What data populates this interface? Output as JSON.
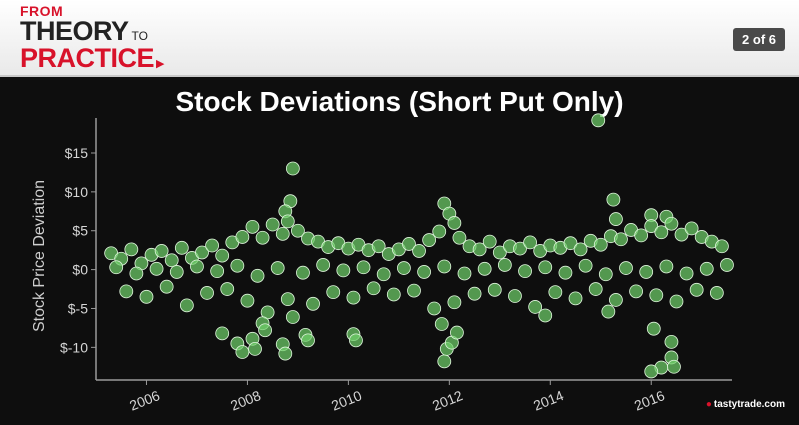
{
  "header": {
    "brand_from": "FROM",
    "brand_theory": "THEORY",
    "brand_to": "TO",
    "brand_practice": "PRACTICE",
    "slide_counter": "2 of 6"
  },
  "logo_text": "tastytrade.com",
  "chart_data": {
    "type": "scatter",
    "title": "Stock Deviations (Short Put Only)",
    "xlabel": "",
    "ylabel": "Stock Price Deviation",
    "x_ticks": [
      "2006",
      "2008",
      "2010",
      "2012",
      "2014",
      "2016"
    ],
    "y_ticks": [
      "$15",
      "$10",
      "$5",
      "$0",
      "$-5",
      "$-10"
    ],
    "y_tick_values": [
      15,
      10,
      5,
      0,
      -5,
      -10
    ],
    "xlim": [
      2005.0,
      2017.6
    ],
    "ylim": [
      -14.2,
      19.5
    ],
    "marker_color": "#6fcf6a",
    "grid": false,
    "points": [
      [
        2008.9,
        13.0
      ],
      [
        2008.85,
        8.8
      ],
      [
        2008.75,
        7.5
      ],
      [
        2008.8,
        6.2
      ],
      [
        2011.9,
        8.5
      ],
      [
        2012.0,
        7.2
      ],
      [
        2012.1,
        6.0
      ],
      [
        2014.95,
        19.2
      ],
      [
        2015.25,
        9.0
      ],
      [
        2015.3,
        6.5
      ],
      [
        2016.0,
        7.0
      ],
      [
        2016.3,
        6.8
      ],
      [
        2005.3,
        2.1
      ],
      [
        2005.5,
        1.4
      ],
      [
        2005.7,
        2.6
      ],
      [
        2005.9,
        0.8
      ],
      [
        2006.1,
        1.9
      ],
      [
        2006.3,
        2.4
      ],
      [
        2006.5,
        1.2
      ],
      [
        2006.7,
        2.8
      ],
      [
        2006.9,
        1.5
      ],
      [
        2007.1,
        2.2
      ],
      [
        2007.3,
        3.1
      ],
      [
        2007.5,
        1.8
      ],
      [
        2007.7,
        3.5
      ],
      [
        2007.9,
        4.2
      ],
      [
        2008.1,
        5.5
      ],
      [
        2008.3,
        4.1
      ],
      [
        2008.5,
        5.8
      ],
      [
        2008.7,
        4.6
      ],
      [
        2009.0,
        5.0
      ],
      [
        2009.2,
        4.0
      ],
      [
        2009.4,
        3.6
      ],
      [
        2009.6,
        2.9
      ],
      [
        2009.8,
        3.4
      ],
      [
        2010.0,
        2.7
      ],
      [
        2010.2,
        3.2
      ],
      [
        2010.4,
        2.5
      ],
      [
        2010.6,
        3.0
      ],
      [
        2010.8,
        2.0
      ],
      [
        2011.0,
        2.6
      ],
      [
        2011.2,
        3.3
      ],
      [
        2011.4,
        2.4
      ],
      [
        2011.6,
        3.8
      ],
      [
        2011.8,
        4.9
      ],
      [
        2012.2,
        4.1
      ],
      [
        2012.4,
        3.0
      ],
      [
        2012.6,
        2.6
      ],
      [
        2012.8,
        3.6
      ],
      [
        2013.0,
        2.2
      ],
      [
        2013.2,
        3.0
      ],
      [
        2013.4,
        2.7
      ],
      [
        2013.6,
        3.5
      ],
      [
        2013.8,
        2.4
      ],
      [
        2014.0,
        3.1
      ],
      [
        2014.2,
        2.8
      ],
      [
        2014.4,
        3.4
      ],
      [
        2014.6,
        2.6
      ],
      [
        2014.8,
        3.7
      ],
      [
        2015.0,
        3.2
      ],
      [
        2015.2,
        4.3
      ],
      [
        2015.4,
        3.9
      ],
      [
        2015.6,
        5.1
      ],
      [
        2015.8,
        4.4
      ],
      [
        2016.0,
        5.6
      ],
      [
        2016.2,
        4.8
      ],
      [
        2016.4,
        5.9
      ],
      [
        2016.6,
        4.5
      ],
      [
        2016.8,
        5.3
      ],
      [
        2017.0,
        4.2
      ],
      [
        2017.2,
        3.6
      ],
      [
        2017.4,
        3.0
      ],
      [
        2005.4,
        0.3
      ],
      [
        2005.8,
        -0.5
      ],
      [
        2006.2,
        0.1
      ],
      [
        2006.6,
        -0.3
      ],
      [
        2007.0,
        0.4
      ],
      [
        2007.4,
        -0.2
      ],
      [
        2007.8,
        0.5
      ],
      [
        2008.2,
        -0.8
      ],
      [
        2008.6,
        0.2
      ],
      [
        2009.1,
        -0.4
      ],
      [
        2009.5,
        0.6
      ],
      [
        2009.9,
        -0.1
      ],
      [
        2010.3,
        0.3
      ],
      [
        2010.7,
        -0.6
      ],
      [
        2011.1,
        0.2
      ],
      [
        2011.5,
        -0.3
      ],
      [
        2011.9,
        0.4
      ],
      [
        2012.3,
        -0.5
      ],
      [
        2012.7,
        0.1
      ],
      [
        2013.1,
        0.6
      ],
      [
        2013.5,
        -0.2
      ],
      [
        2013.9,
        0.3
      ],
      [
        2014.3,
        -0.4
      ],
      [
        2014.7,
        0.5
      ],
      [
        2015.1,
        -0.6
      ],
      [
        2015.5,
        0.2
      ],
      [
        2015.9,
        -0.3
      ],
      [
        2016.3,
        0.4
      ],
      [
        2016.7,
        -0.5
      ],
      [
        2017.1,
        0.1
      ],
      [
        2017.5,
        0.6
      ],
      [
        2005.6,
        -2.8
      ],
      [
        2006.0,
        -3.5
      ],
      [
        2006.4,
        -2.2
      ],
      [
        2006.8,
        -4.6
      ],
      [
        2007.2,
        -3.0
      ],
      [
        2007.6,
        -2.5
      ],
      [
        2008.0,
        -4.0
      ],
      [
        2008.4,
        -5.5
      ],
      [
        2008.8,
        -3.8
      ],
      [
        2009.3,
        -4.4
      ],
      [
        2009.7,
        -2.9
      ],
      [
        2010.1,
        -3.6
      ],
      [
        2010.5,
        -2.4
      ],
      [
        2010.9,
        -3.2
      ],
      [
        2011.3,
        -2.7
      ],
      [
        2011.7,
        -5.0
      ],
      [
        2012.1,
        -4.2
      ],
      [
        2012.5,
        -3.1
      ],
      [
        2012.9,
        -2.6
      ],
      [
        2013.3,
        -3.4
      ],
      [
        2013.7,
        -4.8
      ],
      [
        2014.1,
        -2.9
      ],
      [
        2014.5,
        -3.7
      ],
      [
        2014.9,
        -2.5
      ],
      [
        2015.3,
        -3.9
      ],
      [
        2015.7,
        -2.8
      ],
      [
        2016.1,
        -3.3
      ],
      [
        2016.5,
        -4.1
      ],
      [
        2016.9,
        -2.6
      ],
      [
        2017.3,
        -3.0
      ],
      [
        2007.5,
        -8.2
      ],
      [
        2007.8,
        -9.5
      ],
      [
        2007.9,
        -10.6
      ],
      [
        2008.1,
        -8.9
      ],
      [
        2008.15,
        -10.2
      ],
      [
        2008.3,
        -6.9
      ],
      [
        2008.35,
        -7.8
      ],
      [
        2008.7,
        -9.6
      ],
      [
        2008.75,
        -10.8
      ],
      [
        2008.9,
        -6.1
      ],
      [
        2009.15,
        -8.4
      ],
      [
        2009.2,
        -9.1
      ],
      [
        2010.1,
        -8.3
      ],
      [
        2010.15,
        -9.1
      ],
      [
        2011.85,
        -7.0
      ],
      [
        2011.9,
        -11.8
      ],
      [
        2011.95,
        -10.2
      ],
      [
        2012.05,
        -9.4
      ],
      [
        2012.15,
        -8.1
      ],
      [
        2013.9,
        -5.9
      ],
      [
        2015.15,
        -5.4
      ],
      [
        2016.05,
        -7.6
      ],
      [
        2016.2,
        -12.6
      ],
      [
        2016.4,
        -11.3
      ],
      [
        2016.45,
        -12.5
      ],
      [
        2016.0,
        -13.1
      ],
      [
        2016.4,
        -9.3
      ]
    ]
  }
}
